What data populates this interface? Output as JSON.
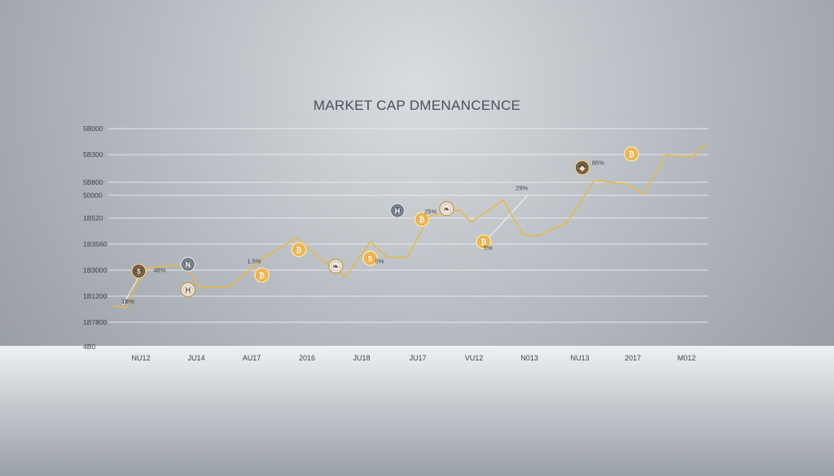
{
  "chart_data": {
    "type": "line",
    "title": "MARKET CAP DMENANCENCE",
    "xlabel": "",
    "ylabel": "",
    "y_tick_labels": [
      "5B000",
      "5B300",
      "5B800",
      "50000",
      "1B520",
      "1B3560",
      "1B3000",
      "1B1200",
      "1B7800",
      "4B0"
    ],
    "x_tick_labels": [
      "NU12",
      "JU14",
      "AU17",
      "2016",
      "JU18",
      "JU17",
      "VU12",
      "N013",
      "NU13",
      "2017",
      "M012"
    ],
    "grid": true,
    "legend": "none",
    "line_color": "#e6b84a",
    "y_range_position": [
      0,
      100
    ],
    "series": [
      {
        "values": [
          {
            "x": 0.0,
            "y": 9.3
          },
          {
            "x": 0.5,
            "y": 8.2
          },
          {
            "x": 1.2,
            "y": 28.3
          },
          {
            "x": 2.5,
            "y": 30.0
          },
          {
            "x": 3.0,
            "y": 27.5
          },
          {
            "x": 3.5,
            "y": 18.5
          },
          {
            "x": 4.7,
            "y": 19.0
          },
          {
            "x": 6.0,
            "y": 33.0
          },
          {
            "x": 7.4,
            "y": 44.0
          },
          {
            "x": 8.5,
            "y": 32.0
          },
          {
            "x": 9.4,
            "y": 24.0
          },
          {
            "x": 10.4,
            "y": 42.0
          },
          {
            "x": 11.1,
            "y": 34.0
          },
          {
            "x": 11.9,
            "y": 34.0
          },
          {
            "x": 12.8,
            "y": 55.0
          },
          {
            "x": 14.0,
            "y": 58.5
          },
          {
            "x": 14.5,
            "y": 52.0
          },
          {
            "x": 15.8,
            "y": 63.5
          },
          {
            "x": 16.6,
            "y": 45.5
          },
          {
            "x": 17.2,
            "y": 45.0
          },
          {
            "x": 18.4,
            "y": 52.0
          },
          {
            "x": 19.5,
            "y": 73.5
          },
          {
            "x": 20.8,
            "y": 71.5
          },
          {
            "x": 21.5,
            "y": 66.5
          },
          {
            "x": 22.4,
            "y": 86.5
          },
          {
            "x": 23.5,
            "y": 85.5
          },
          {
            "x": 24.0,
            "y": 92.0
          }
        ]
      }
    ],
    "markers": [
      {
        "x": 1.0,
        "y": 27.0,
        "icon": "coin-dollar-icon",
        "style": "dark"
      },
      {
        "x": 3.0,
        "y": 30.5,
        "icon": "coin-n-icon",
        "style": "slate"
      },
      {
        "x": 3.0,
        "y": 17.5,
        "icon": "coin-h-icon",
        "style": "light"
      },
      {
        "x": 6.0,
        "y": 25.0,
        "icon": "coin-bitcoin-icon",
        "style": "gold"
      },
      {
        "x": 7.5,
        "y": 38.0,
        "icon": "coin-bitcoin-icon",
        "style": "gold"
      },
      {
        "x": 9.0,
        "y": 29.5,
        "icon": "coin-leaf-icon",
        "style": "light"
      },
      {
        "x": 10.4,
        "y": 33.5,
        "icon": "coin-s-icon",
        "style": "gold"
      },
      {
        "x": 11.5,
        "y": 58.0,
        "icon": "coin-h-icon",
        "style": "slate"
      },
      {
        "x": 12.5,
        "y": 53.5,
        "icon": "coin-bitcoin-icon",
        "style": "gold"
      },
      {
        "x": 13.5,
        "y": 59.0,
        "icon": "coin-leaf-icon",
        "style": "light"
      },
      {
        "x": 15.0,
        "y": 42.0,
        "icon": "coin-bitcoin-icon",
        "style": "gold"
      },
      {
        "x": 19.0,
        "y": 80.0,
        "icon": "coin-dark-icon",
        "style": "dark"
      },
      {
        "x": 21.0,
        "y": 87.0,
        "icon": "coin-bitcoin-icon",
        "style": "gold"
      }
    ],
    "annotations": [
      {
        "x": 0.3,
        "y": 10.5,
        "text": "1B%"
      },
      {
        "x": 1.6,
        "y": 26.5,
        "text": "48%"
      },
      {
        "x": 5.4,
        "y": 31.0,
        "text": "1.5%"
      },
      {
        "x": 10.6,
        "y": 31.0,
        "text": "5%"
      },
      {
        "x": 12.6,
        "y": 56.5,
        "text": "25%"
      },
      {
        "x": 15.0,
        "y": 38.0,
        "text": "5%"
      },
      {
        "x": 16.3,
        "y": 68.5,
        "text": "29%"
      },
      {
        "x": 19.4,
        "y": 81.5,
        "text": "85%"
      }
    ]
  }
}
